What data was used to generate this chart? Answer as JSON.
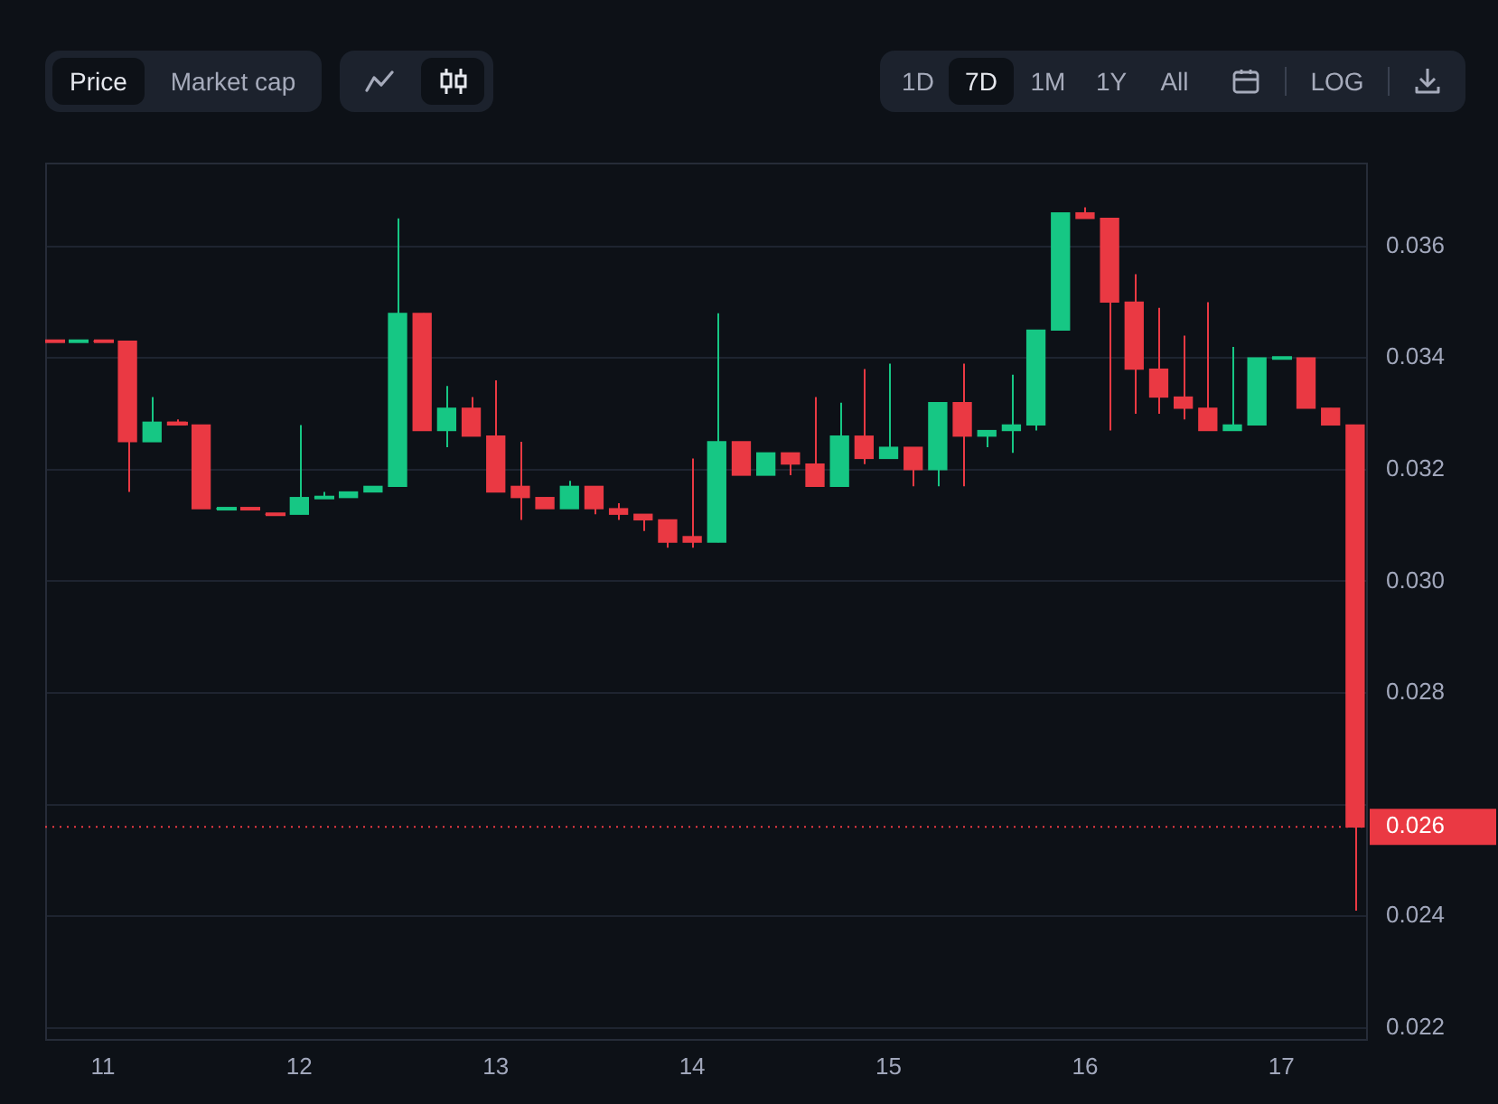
{
  "chart_data": {
    "type": "candlestick",
    "x": [
      10.75,
      10.875,
      11,
      11.125,
      11.25,
      11.375,
      11.5,
      11.625,
      11.75,
      11.875,
      12,
      12.125,
      12.25,
      12.375,
      12.5,
      12.625,
      12.75,
      12.875,
      13,
      13.125,
      13.25,
      13.375,
      13.5,
      13.625,
      13.75,
      13.875,
      14,
      14.125,
      14.25,
      14.375,
      14.5,
      14.625,
      14.75,
      14.875,
      15,
      15.125,
      15.25,
      15.375,
      15.5,
      15.625,
      15.75,
      15.875,
      16,
      16.125,
      16.25,
      16.375,
      16.5,
      16.625,
      16.75,
      16.875,
      17,
      17.125,
      17.25,
      17.375
    ],
    "ohlc": [
      [
        0.0343,
        0.0343,
        0.0343,
        0.0343
      ],
      [
        0.0343,
        0.0343,
        0.0343,
        0.0343
      ],
      [
        0.0343,
        0.0343,
        0.0343,
        0.0343
      ],
      [
        0.0343,
        0.0343,
        0.0316,
        0.0325
      ],
      [
        0.0325,
        0.0333,
        0.0325,
        0.03285
      ],
      [
        0.03285,
        0.0329,
        0.0328,
        0.0328
      ],
      [
        0.0328,
        0.0328,
        0.0313,
        0.0313
      ],
      [
        0.0313,
        0.0313,
        0.0313,
        0.0313
      ],
      [
        0.0313,
        0.0313,
        0.0313,
        0.0313
      ],
      [
        0.0312,
        0.0312,
        0.0312,
        0.0312
      ],
      [
        0.0312,
        0.0328,
        0.0312,
        0.0315
      ],
      [
        0.0315,
        0.0316,
        0.0315,
        0.0315
      ],
      [
        0.0315,
        0.0316,
        0.0315,
        0.0316
      ],
      [
        0.0316,
        0.0317,
        0.0316,
        0.0317
      ],
      [
        0.0317,
        0.0365,
        0.0317,
        0.0348
      ],
      [
        0.0348,
        0.0348,
        0.0327,
        0.0327
      ],
      [
        0.0327,
        0.0335,
        0.0324,
        0.0331
      ],
      [
        0.0331,
        0.0333,
        0.0326,
        0.0326
      ],
      [
        0.0326,
        0.0336,
        0.0316,
        0.0316
      ],
      [
        0.0317,
        0.0325,
        0.0311,
        0.0315
      ],
      [
        0.0315,
        0.0315,
        0.0313,
        0.0313
      ],
      [
        0.0313,
        0.0318,
        0.0313,
        0.0317
      ],
      [
        0.0317,
        0.0317,
        0.0312,
        0.0313
      ],
      [
        0.0313,
        0.0314,
        0.0311,
        0.0312
      ],
      [
        0.0312,
        0.0312,
        0.0309,
        0.0311
      ],
      [
        0.0311,
        0.0311,
        0.0306,
        0.0307
      ],
      [
        0.0308,
        0.0322,
        0.0306,
        0.0307
      ],
      [
        0.0307,
        0.0348,
        0.0307,
        0.0325
      ],
      [
        0.0325,
        0.0325,
        0.0319,
        0.0319
      ],
      [
        0.0319,
        0.0323,
        0.0319,
        0.0323
      ],
      [
        0.0323,
        0.0323,
        0.0319,
        0.0321
      ],
      [
        0.0321,
        0.0333,
        0.0317,
        0.0317
      ],
      [
        0.0317,
        0.0332,
        0.0317,
        0.0326
      ],
      [
        0.0326,
        0.0338,
        0.0321,
        0.0322
      ],
      [
        0.0322,
        0.0339,
        0.0322,
        0.0324
      ],
      [
        0.0324,
        0.0324,
        0.0317,
        0.032
      ],
      [
        0.032,
        0.0332,
        0.0317,
        0.0332
      ],
      [
        0.0332,
        0.0339,
        0.0317,
        0.0326
      ],
      [
        0.0326,
        0.0327,
        0.0324,
        0.0327
      ],
      [
        0.0327,
        0.0337,
        0.0323,
        0.0328
      ],
      [
        0.0328,
        0.0345,
        0.0327,
        0.0345
      ],
      [
        0.0345,
        0.0366,
        0.0345,
        0.0366
      ],
      [
        0.0366,
        0.0367,
        0.0365,
        0.0365
      ],
      [
        0.0365,
        0.0365,
        0.0327,
        0.035
      ],
      [
        0.035,
        0.0355,
        0.033,
        0.0338
      ],
      [
        0.0338,
        0.0349,
        0.033,
        0.0333
      ],
      [
        0.0333,
        0.0344,
        0.0329,
        0.0331
      ],
      [
        0.0331,
        0.035,
        0.0327,
        0.0327
      ],
      [
        0.0327,
        0.0342,
        0.0327,
        0.0328
      ],
      [
        0.0328,
        0.034,
        0.0328,
        0.034
      ],
      [
        0.034,
        0.034,
        0.034,
        0.034
      ],
      [
        0.034,
        0.034,
        0.0331,
        0.0331
      ],
      [
        0.0331,
        0.0331,
        0.0328,
        0.0328
      ],
      [
        0.0328,
        0.0328,
        0.0241,
        0.0256
      ]
    ],
    "colors": [
      "#ea3943",
      "#16c784",
      "#ea3943",
      "#ea3943",
      "#16c784",
      "#ea3943",
      "#ea3943",
      "#16c784",
      "#ea3943",
      "#ea3943",
      "#16c784",
      "#16c784",
      "#16c784",
      "#16c784",
      "#16c784",
      "#ea3943",
      "#16c784",
      "#ea3943",
      "#ea3943",
      "#ea3943",
      "#ea3943",
      "#16c784",
      "#ea3943",
      "#ea3943",
      "#ea3943",
      "#ea3943",
      "#ea3943",
      "#16c784",
      "#ea3943",
      "#16c784",
      "#ea3943",
      "#ea3943",
      "#16c784",
      "#ea3943",
      "#16c784",
      "#ea3943",
      "#16c784",
      "#ea3943",
      "#16c784",
      "#16c784",
      "#16c784",
      "#16c784",
      "#ea3943",
      "#ea3943",
      "#ea3943",
      "#ea3943",
      "#ea3943",
      "#ea3943",
      "#16c784",
      "#16c784",
      "#16c784",
      "#ea3943",
      "#ea3943",
      "#ea3943"
    ],
    "xlim": [
      10.706,
      17.44
    ],
    "xticks": [
      11,
      12,
      13,
      14,
      15,
      16,
      17
    ],
    "ylim": [
      0.0218,
      0.0375
    ],
    "yticks": [
      0.022,
      0.024,
      {
        "value": 0.026,
        "label": null
      },
      0.028,
      {
        "value": 0.03,
        "label": "0.030"
      },
      0.032,
      0.034,
      0.036
    ],
    "grid": "y",
    "ref_lines": [
      {
        "axis": "y",
        "value": 0.0256,
        "label": "0.026",
        "color": "#ea3943",
        "line_style": "dotted"
      }
    ],
    "annotations": [
      "Price",
      "Market cap",
      "1D",
      "7D",
      "1M",
      "1Y",
      "All",
      "LOG"
    ]
  }
}
